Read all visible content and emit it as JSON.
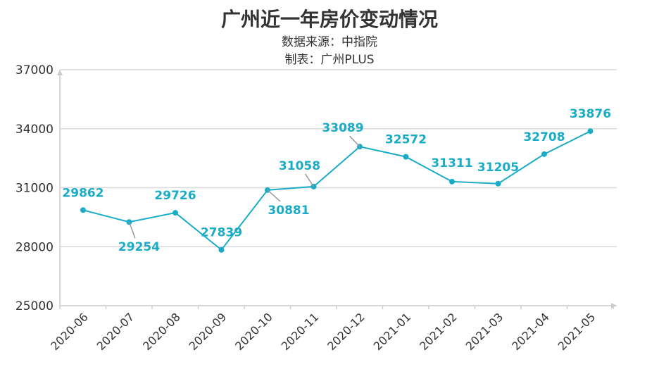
{
  "chart_data": {
    "type": "line",
    "title": "广州近一年房价变动情况",
    "subtitle_lines": [
      "数据来源：中指院",
      "制表：广州PLUS"
    ],
    "xlabel": "",
    "ylabel": "",
    "categories": [
      "2020-06",
      "2020-07",
      "2020-08",
      "2020-09",
      "2020-10",
      "2020-11",
      "2020-12",
      "2021-01",
      "2021-02",
      "2021-03",
      "2021-04",
      "2021-05"
    ],
    "values": [
      29862,
      29254,
      29726,
      27839,
      30881,
      31058,
      33089,
      32572,
      31311,
      31205,
      32708,
      33876
    ],
    "ylim": [
      25000,
      37000
    ],
    "yticks": [
      "25000",
      "28000",
      "31000",
      "34000",
      "37000"
    ],
    "grid": true,
    "legend": "none",
    "color": "#1aabc7"
  }
}
